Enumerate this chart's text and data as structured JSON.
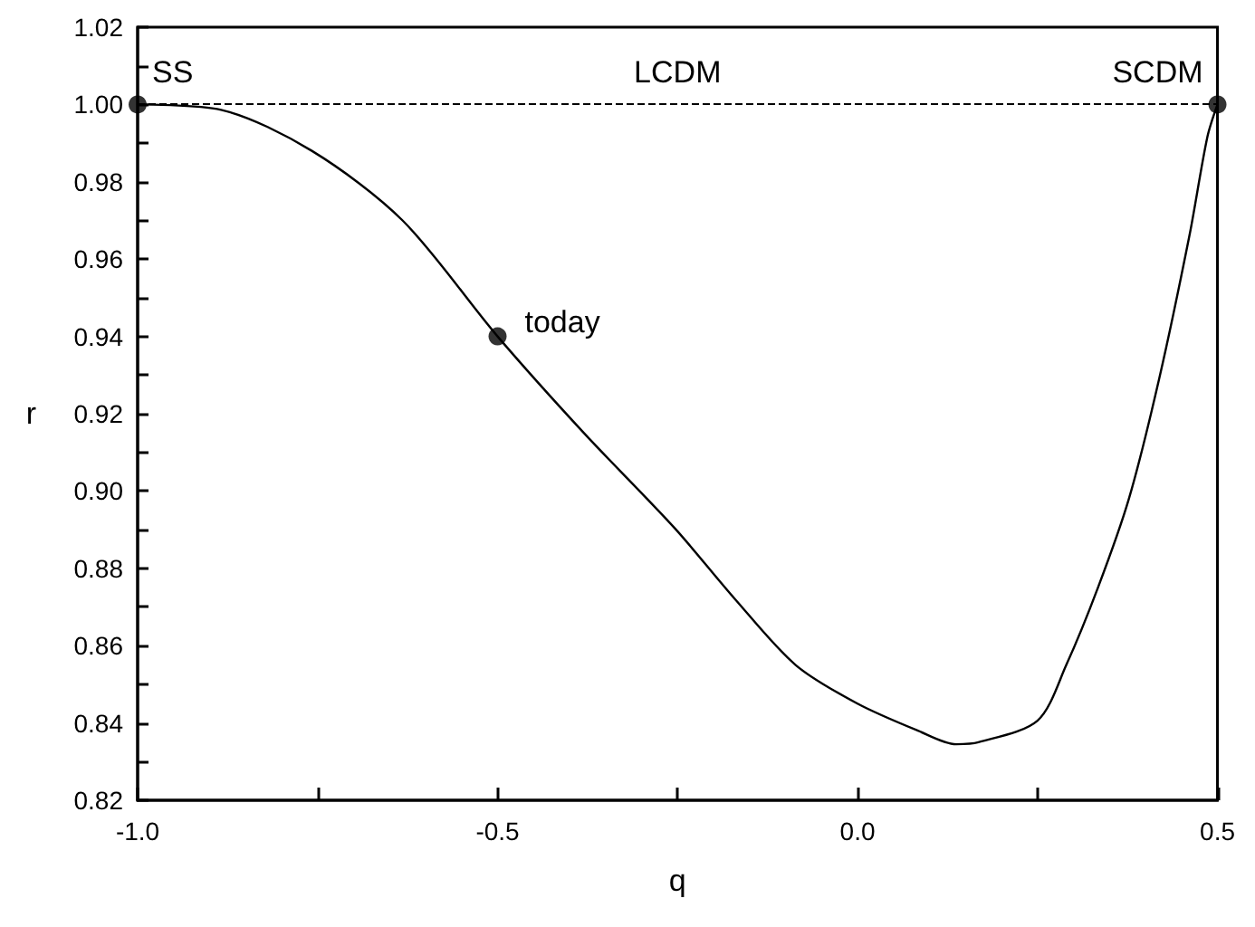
{
  "chart_data": {
    "type": "line",
    "xlabel": "q",
    "ylabel": "r",
    "xlim": [
      -1.0,
      0.5
    ],
    "ylim": [
      0.82,
      1.02
    ],
    "xticks": [
      {
        "value": -1,
        "label": "-1.0"
      },
      {
        "value": -0.75,
        "label": null
      },
      {
        "value": -0.5,
        "label": "-0.5"
      },
      {
        "value": -0.25,
        "label": null
      },
      {
        "value": 0,
        "label": "0.0"
      },
      {
        "value": 0.25,
        "label": null
      },
      {
        "value": 0.5,
        "label": "0.5"
      }
    ],
    "yticks": [
      0.82,
      {
        "value": 0.83,
        "label": null
      },
      0.84,
      {
        "value": 0.85,
        "label": null
      },
      0.86,
      {
        "value": 0.87,
        "label": null
      },
      0.88,
      {
        "value": 0.89,
        "label": null
      },
      {
        "value": 0.9,
        "label": "0.90"
      },
      {
        "value": 0.91,
        "label": null
      },
      0.92,
      {
        "value": 0.93,
        "label": null
      },
      0.94,
      {
        "value": 0.95,
        "label": null
      },
      0.96,
      {
        "value": 0.97,
        "label": null
      },
      0.98,
      {
        "value": 0.99,
        "label": null
      },
      {
        "value": 1.0,
        "label": "1.00"
      },
      {
        "value": 1.01,
        "label": null
      },
      {
        "value": 1.02,
        "label": "1.02"
      }
    ],
    "series": [
      {
        "color": "#000000",
        "marker": "none",
        "line_style": "solid",
        "x": [
          -1,
          -0.884,
          -0.758,
          -0.632,
          -0.5,
          -0.38,
          -0.254,
          -0.17,
          -0.086,
          0,
          0.084,
          0.137,
          0.168,
          0.25,
          0.29,
          0.334,
          0.377,
          0.419,
          0.461,
          0.486,
          0.5
        ],
        "values": [
          1.0,
          0.9986,
          0.988,
          0.97,
          0.94,
          0.915,
          0.8904,
          0.872,
          0.855,
          0.845,
          0.838,
          0.8345,
          0.835,
          0.8406,
          0.855,
          0.875,
          0.898,
          0.929,
          0.966,
          0.9916,
          1.0
        ]
      },
      {
        "type": "scatter",
        "color": "#000000",
        "marker": "circle",
        "x": [
          -1,
          -0.5,
          0.5
        ],
        "values": [
          1.0,
          0.94,
          1.0
        ]
      }
    ],
    "ref_lines": [
      {
        "axis": "y",
        "value": 1.0,
        "color": "#000000",
        "line_style": "dashed"
      }
    ],
    "annotations": [
      {
        "text": "SS",
        "x": -1,
        "y": 1.0
      },
      {
        "text": "LCDM",
        "x": -0.25,
        "y": 1.0
      },
      {
        "text": "SCDM",
        "x": 0.5,
        "y": 1.0
      },
      {
        "text": "today",
        "x": -0.5,
        "y": 0.94
      }
    ]
  }
}
